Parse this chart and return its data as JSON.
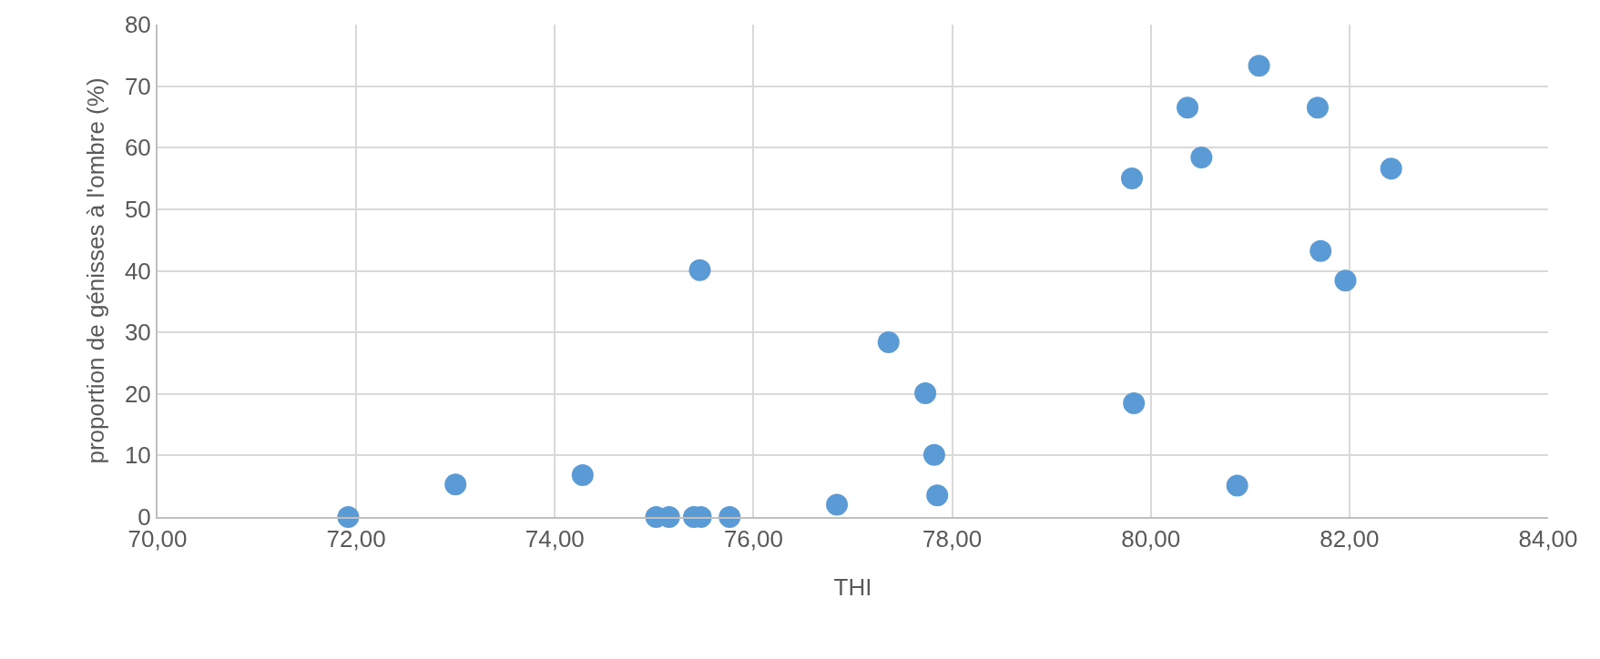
{
  "chart_data": {
    "type": "scatter",
    "xlabel": "THI",
    "ylabel": "proportion de génisses à l'ombre (%)",
    "series": [
      {
        "color": "#5b9bd5",
        "x": [
          71.92,
          73.0,
          74.28,
          75.02,
          75.15,
          75.4,
          75.47,
          75.76,
          75.46,
          76.84,
          77.36,
          77.73,
          77.82,
          77.85,
          79.81,
          79.83,
          80.37,
          80.51,
          80.87,
          81.09,
          81.68,
          81.71,
          81.96,
          82.42
        ],
        "values": [
          0,
          5.3,
          6.8,
          0,
          0,
          0,
          0,
          0,
          40.1,
          2.0,
          28.4,
          20.1,
          10.1,
          3.5,
          55.0,
          18.5,
          66.5,
          58.4,
          5.1,
          73.3,
          66.5,
          43.2,
          38.4,
          56.6
        ]
      }
    ],
    "xlim": [
      70,
      84
    ],
    "xticks": [
      {
        "value": 70,
        "label": "70,00"
      },
      {
        "value": 72,
        "label": "72,00"
      },
      {
        "value": 74,
        "label": "74,00"
      },
      {
        "value": 76,
        "label": "76,00"
      },
      {
        "value": 78,
        "label": "78,00"
      },
      {
        "value": 80,
        "label": "80,00"
      },
      {
        "value": 82,
        "label": "82,00"
      },
      {
        "value": 84,
        "label": "84,00"
      }
    ],
    "ylim": [
      0,
      80
    ],
    "yticks": [
      0,
      10,
      20,
      30,
      40,
      50,
      60,
      70,
      80
    ],
    "grid": true,
    "marker": "circle"
  }
}
